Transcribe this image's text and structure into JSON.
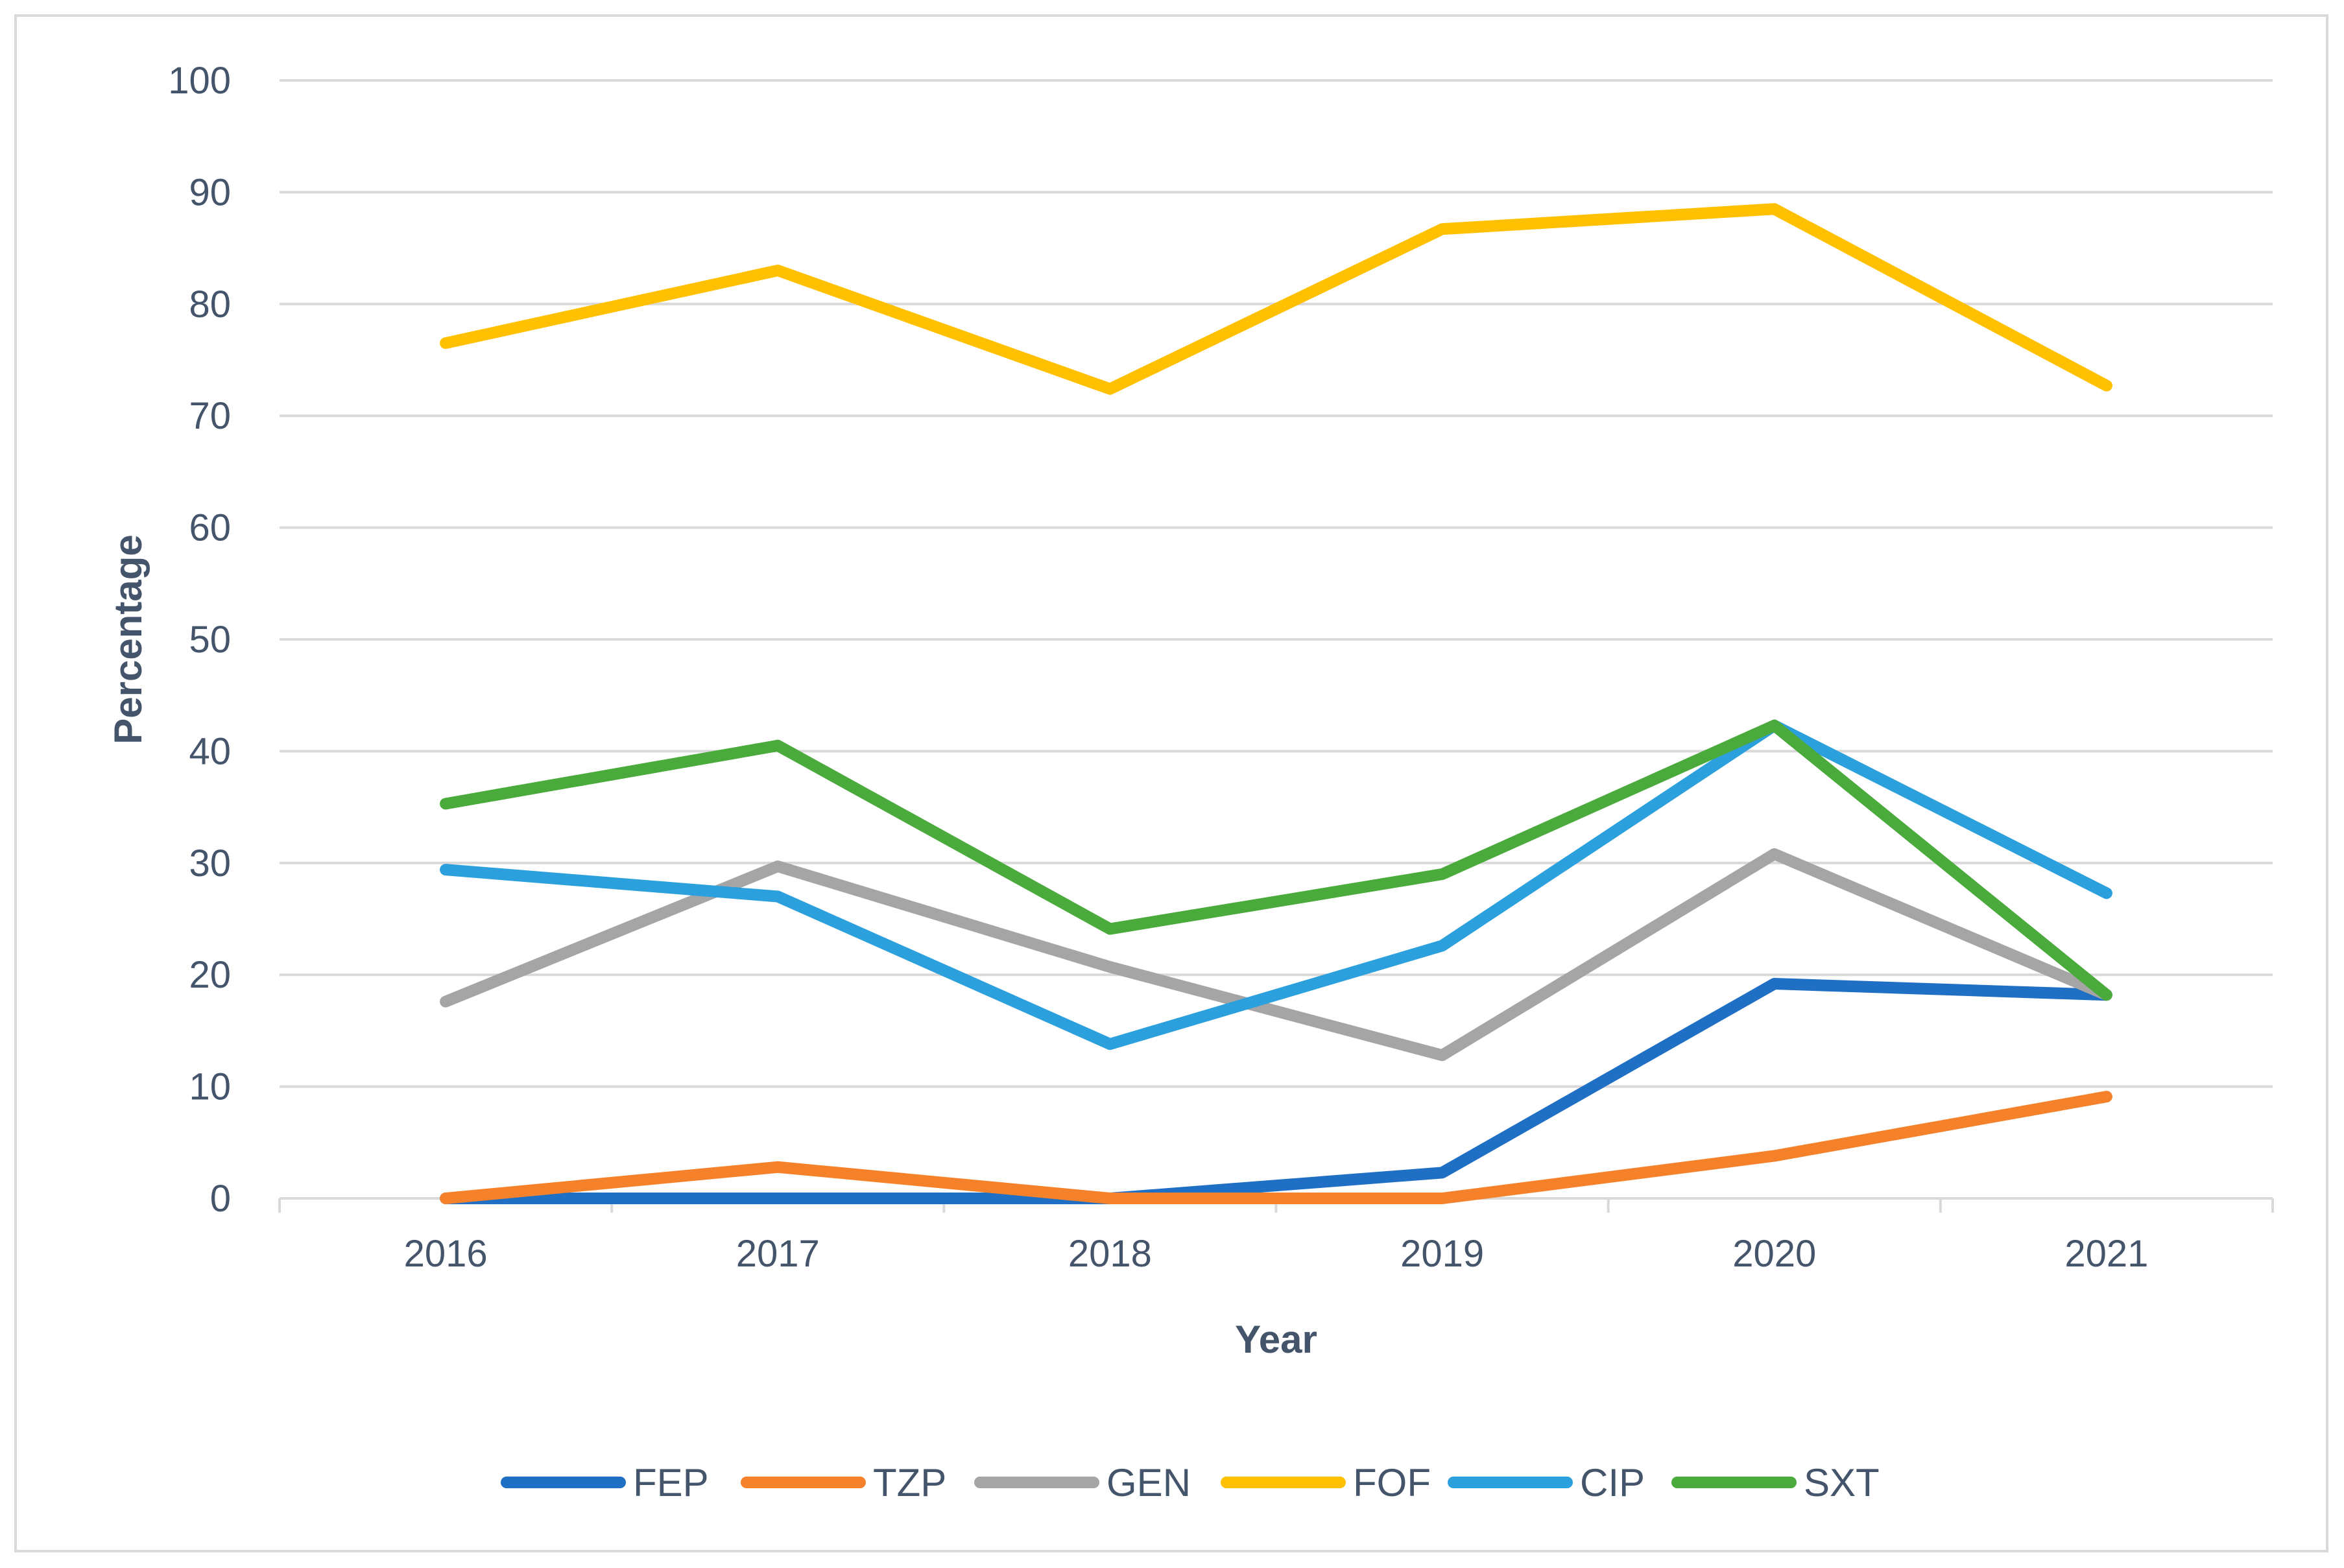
{
  "chart_data": {
    "type": "line",
    "title": "",
    "xlabel": "Year",
    "ylabel": "Percentage",
    "categories": [
      "2016",
      "2017",
      "2018",
      "2019",
      "2020",
      "2021"
    ],
    "ylim": [
      0,
      100
    ],
    "yticks": [
      0,
      10,
      20,
      30,
      40,
      50,
      60,
      70,
      80,
      90,
      100
    ],
    "grid": true,
    "legend_position": "bottom",
    "series": [
      {
        "name": "FEP",
        "color": "#1f6fc5",
        "values": [
          0,
          0,
          0,
          2.3,
          19.2,
          18.2
        ]
      },
      {
        "name": "TZP",
        "color": "#f5822a",
        "values": [
          0,
          2.8,
          0,
          0,
          3.8,
          9.1
        ]
      },
      {
        "name": "GEN",
        "color": "#a5a5a5",
        "values": [
          17.6,
          29.7,
          20.7,
          12.8,
          30.8,
          18.2
        ]
      },
      {
        "name": "FOF",
        "color": "#ffc000",
        "values": [
          76.5,
          83.0,
          72.4,
          86.7,
          88.5,
          72.7
        ]
      },
      {
        "name": "CIP",
        "color": "#2ba0dc",
        "values": [
          29.4,
          27.0,
          13.8,
          22.6,
          42.3,
          27.3
        ]
      },
      {
        "name": "SXT",
        "color": "#4aab3c",
        "values": [
          35.3,
          40.5,
          24.1,
          29.0,
          42.3,
          18.2
        ]
      }
    ]
  }
}
